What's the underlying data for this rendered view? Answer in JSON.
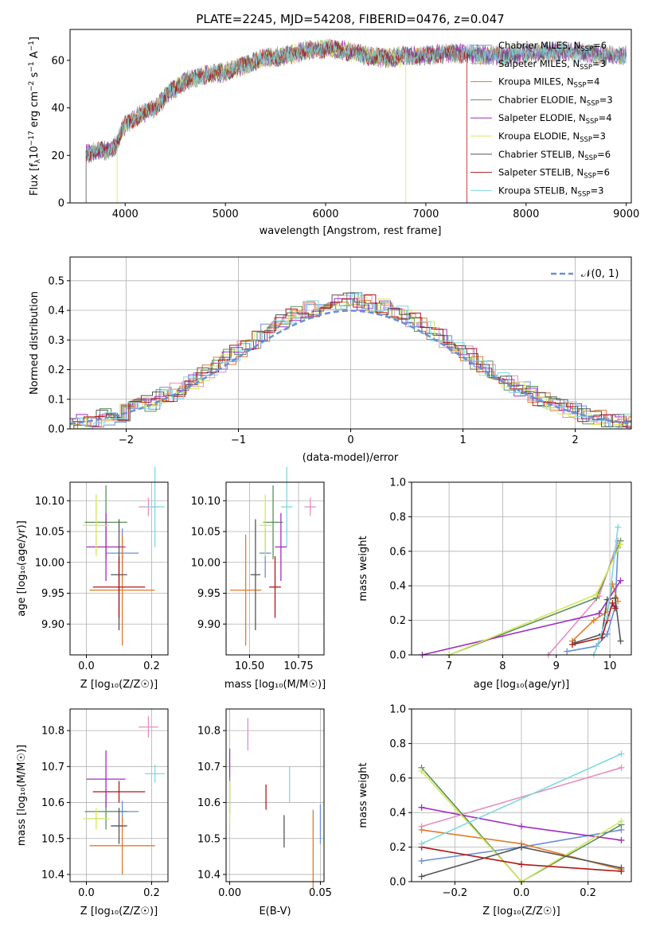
{
  "colors": {
    "c0": "#6a8fd6",
    "c1": "#e58fc0",
    "c2": "#e07b2a",
    "c3": "#5c8f5c",
    "c4": "#a02fbd",
    "c5": "#d4e85a",
    "c6": "#555555",
    "c7": "#b01818",
    "c8": "#7fd9e0"
  },
  "chart_data": [
    {
      "id": "spectrum",
      "type": "line",
      "title": "PLATE=2245, MJD=54208, FIBERID=0476, z=0.047",
      "xlabel": "wavelength [Angstrom, rest frame]",
      "ylabel_main": "Flux [f",
      "ylabel_parts": [
        "λ",
        "10",
        "−17",
        " erg cm",
        "−2",
        " s",
        "−1",
        " A",
        "−1",
        "]"
      ],
      "xlim": [
        3450,
        9050
      ],
      "ylim": [
        0,
        73
      ],
      "xticks": [
        "4000",
        "5000",
        "6000",
        "7000",
        "8000",
        "9000"
      ],
      "yticks": [
        "0",
        "20",
        "40",
        "60"
      ],
      "continuum_x": [
        3600,
        3800,
        3900,
        4000,
        4150,
        4300,
        4450,
        4600,
        4800,
        5000,
        5200,
        5400,
        5600,
        5800,
        6000,
        6200,
        6400,
        6600,
        6800,
        7000,
        7200,
        7400,
        7600,
        7800,
        8000,
        8200,
        8400,
        8600,
        8800
      ],
      "continuum_y": [
        21,
        22,
        24,
        33,
        37,
        40,
        47,
        51,
        54,
        55,
        58,
        61,
        62,
        64,
        65,
        64,
        62,
        61,
        62,
        62,
        63,
        63,
        62,
        62,
        63,
        63,
        64,
        63,
        62
      ],
      "legend": [
        {
          "label": "Chabrier MILES, N",
          "sub": "SSP",
          "tail": "=6"
        },
        {
          "label": "Salpeter MILES, N",
          "sub": "SSP",
          "tail": "=3"
        },
        {
          "label": "Kroupa MILES, N",
          "sub": "SSP",
          "tail": "=4"
        },
        {
          "label": "Chabrier ELODIE, N",
          "sub": "SSP",
          "tail": "=3"
        },
        {
          "label": "Salpeter ELODIE, N",
          "sub": "SSP",
          "tail": "=4"
        },
        {
          "label": "Kroupa ELODIE, N",
          "sub": "SSP",
          "tail": "=3"
        },
        {
          "label": "Chabrier STELIB, N",
          "sub": "SSP",
          "tail": "=6"
        },
        {
          "label": "Salpeter STELIB, N",
          "sub": "SSP",
          "tail": "=6"
        },
        {
          "label": "Kroupa STELIB, N",
          "sub": "SSP",
          "tail": "=3"
        }
      ],
      "series_ranges": [
        [
          3610,
          9000
        ],
        [
          3610,
          9000
        ],
        [
          3610,
          9000
        ],
        [
          3610,
          9000
        ],
        [
          3610,
          9000
        ],
        [
          3920,
          6800
        ],
        [
          3610,
          9000
        ],
        [
          3610,
          7410
        ],
        [
          3610,
          9000
        ]
      ]
    },
    {
      "id": "residuals",
      "type": "step",
      "xlabel": "(data-model)/error",
      "ylabel": "Normed distribution",
      "xlim": [
        -2.5,
        2.5
      ],
      "ylim": [
        0,
        0.58
      ],
      "xticks": [
        "−2",
        "−1",
        "0",
        "1",
        "2"
      ],
      "yticks": [
        "0.0",
        "0.1",
        "0.2",
        "0.3",
        "0.4",
        "0.5"
      ],
      "legend_label": "𝒩(0, 1)",
      "bin_width": 0.1
    },
    {
      "id": "age-vs-Z",
      "type": "errorbar",
      "xlabel": "Z [log₁₀(Z/Z☉)]",
      "ylabel": "age  [log₁₀(age/yr)]",
      "xlim": [
        -0.05,
        0.25
      ],
      "ylim": [
        9.85,
        10.13
      ],
      "xticks": [
        "0.0",
        "0.2"
      ],
      "yticks": [
        "9.90",
        "9.95",
        "10.00",
        "10.05",
        "10.10"
      ],
      "points": [
        {
          "c": "c0",
          "x": 0.11,
          "xe": 0.05,
          "y": 10.015,
          "ye": 0.04
        },
        {
          "c": "c1",
          "x": 0.19,
          "xe": 0.03,
          "y": 10.09,
          "ye": 0.015
        },
        {
          "c": "c2",
          "x": 0.11,
          "xe": 0.1,
          "y": 9.955,
          "ye": 0.09
        },
        {
          "c": "c3",
          "x": 0.06,
          "xe": 0.065,
          "y": 10.065,
          "ye": 0.06
        },
        {
          "c": "c4",
          "x": 0.06,
          "xe": 0.06,
          "y": 10.025,
          "ye": 0.055
        },
        {
          "c": "c5",
          "x": 0.03,
          "xe": 0.04,
          "y": 10.06,
          "ye": 0.05
        },
        {
          "c": "c6",
          "x": 0.1,
          "xe": 0.025,
          "y": 9.98,
          "ye": 0.09
        },
        {
          "c": "c7",
          "x": 0.1,
          "xe": 0.08,
          "y": 9.96,
          "ye": 0.05
        },
        {
          "c": "c8",
          "x": 0.21,
          "xe": 0.03,
          "y": 10.09,
          "ye": 0.065
        }
      ]
    },
    {
      "id": "age-vs-mass",
      "type": "errorbar",
      "xlabel": "mass [log₁₀(M/M☉)]",
      "ylabel": "",
      "xlim": [
        10.38,
        10.88
      ],
      "ylim": [
        9.85,
        10.13
      ],
      "xticks": [
        "10.50",
        "10.75"
      ],
      "yticks": [
        "9.90",
        "9.95",
        "10.00",
        "10.05",
        "10.10"
      ],
      "points": [
        {
          "c": "c0",
          "x": 10.58,
          "xe": 0.03,
          "y": 10.015,
          "ye": 0.04
        },
        {
          "c": "c1",
          "x": 10.81,
          "xe": 0.03,
          "y": 10.09,
          "ye": 0.015
        },
        {
          "c": "c2",
          "x": 10.48,
          "xe": 0.08,
          "y": 9.955,
          "ye": 0.09
        },
        {
          "c": "c3",
          "x": 10.62,
          "xe": 0.05,
          "y": 10.065,
          "ye": 0.06
        },
        {
          "c": "c4",
          "x": 10.66,
          "xe": 0.03,
          "y": 10.025,
          "ye": 0.055
        },
        {
          "c": "c5",
          "x": 10.58,
          "xe": 0.03,
          "y": 10.06,
          "ye": 0.05
        },
        {
          "c": "c6",
          "x": 10.53,
          "xe": 0.025,
          "y": 9.98,
          "ye": 0.09
        },
        {
          "c": "c7",
          "x": 10.63,
          "xe": 0.03,
          "y": 9.96,
          "ye": 0.05
        },
        {
          "c": "c8",
          "x": 10.69,
          "xe": 0.03,
          "y": 10.09,
          "ye": 0.065
        }
      ]
    },
    {
      "id": "weight-vs-age",
      "type": "line",
      "xlabel": "age  [log₁₀(age/yr)]",
      "ylabel": "mass weight",
      "xlim": [
        6.3,
        10.4
      ],
      "ylim": [
        0,
        1
      ],
      "xticks": [
        "7",
        "8",
        "9",
        "10"
      ],
      "yticks": [
        "0.0",
        "0.2",
        "0.4",
        "0.6",
        "0.8",
        "1.0"
      ],
      "series": [
        {
          "c": "c0",
          "x": [
            9.2,
            9.75,
            9.95,
            10.1,
            10.15
          ],
          "y": [
            0.02,
            0.05,
            0.12,
            0.28,
            0.62
          ]
        },
        {
          "c": "c1",
          "x": [
            8.85,
            9.8,
            10.15
          ],
          "y": [
            0.0,
            0.34,
            0.66
          ]
        },
        {
          "c": "c2",
          "x": [
            9.3,
            9.7,
            9.95,
            10.05,
            10.15
          ],
          "y": [
            0.08,
            0.2,
            0.25,
            0.41,
            0.31
          ]
        },
        {
          "c": "c3",
          "x": [
            7.0,
            9.75,
            10.2
          ],
          "y": [
            0.0,
            0.33,
            0.66
          ]
        },
        {
          "c": "c4",
          "x": [
            6.5,
            9.8,
            10.2
          ],
          "y": [
            0.0,
            0.24,
            0.43
          ]
        },
        {
          "c": "c5",
          "x": [
            7.0,
            9.75,
            10.2
          ],
          "y": [
            0.0,
            0.35,
            0.64
          ]
        },
        {
          "c": "c6",
          "x": [
            9.35,
            9.85,
            9.95,
            10.1,
            10.2
          ],
          "y": [
            0.07,
            0.12,
            0.32,
            0.33,
            0.08
          ]
        },
        {
          "c": "c7",
          "x": [
            9.3,
            9.85,
            9.95,
            10.05,
            10.1
          ],
          "y": [
            0.06,
            0.1,
            0.2,
            0.3,
            0.27
          ]
        },
        {
          "c": "c8",
          "x": [
            9.7,
            9.95,
            10.15
          ],
          "y": [
            0.0,
            0.22,
            0.74
          ]
        }
      ]
    },
    {
      "id": "mass-vs-Z",
      "type": "errorbar",
      "xlabel": "Z [log₁₀(Z/Z☉)]",
      "ylabel": "mass [log₁₀(M/M☉)]",
      "xlim": [
        -0.05,
        0.25
      ],
      "ylim": [
        10.38,
        10.86
      ],
      "xticks": [
        "0.0",
        "0.2"
      ],
      "yticks": [
        "10.4",
        "10.5",
        "10.6",
        "10.7",
        "10.8"
      ],
      "points": [
        {
          "c": "c0",
          "x": 0.11,
          "xe": 0.05,
          "y": 10.575,
          "ye": 0.03
        },
        {
          "c": "c1",
          "x": 0.19,
          "xe": 0.03,
          "y": 10.81,
          "ye": 0.03
        },
        {
          "c": "c2",
          "x": 0.11,
          "xe": 0.1,
          "y": 10.48,
          "ye": 0.08
        },
        {
          "c": "c3",
          "x": 0.06,
          "xe": 0.065,
          "y": 10.575,
          "ye": 0.05
        },
        {
          "c": "c4",
          "x": 0.06,
          "xe": 0.06,
          "y": 10.665,
          "ye": 0.08
        },
        {
          "c": "c5",
          "x": 0.03,
          "xe": 0.04,
          "y": 10.555,
          "ye": 0.03
        },
        {
          "c": "c6",
          "x": 0.1,
          "xe": 0.025,
          "y": 10.535,
          "ye": 0.05
        },
        {
          "c": "c7",
          "x": 0.1,
          "xe": 0.08,
          "y": 10.63,
          "ye": 0.03
        },
        {
          "c": "c8",
          "x": 0.21,
          "xe": 0.03,
          "y": 10.68,
          "ye": 0.025
        }
      ]
    },
    {
      "id": "mass-vs-ebv",
      "type": "errorbar",
      "xlabel": "E(B-V)",
      "ylabel": "",
      "xlim": [
        -0.002,
        0.052
      ],
      "ylim": [
        10.38,
        10.86
      ],
      "xticks": [
        "0.00",
        "0.05"
      ],
      "yticks": [
        "10.4",
        "10.5",
        "10.6",
        "10.7",
        "10.8"
      ],
      "points": [
        {
          "c": "c0",
          "x": 0.05,
          "xe": 0.0,
          "y": 10.54,
          "ye": 0.055
        },
        {
          "c": "c1",
          "x": 0.01,
          "xe": 0.0,
          "y": 10.79,
          "ye": 0.045
        },
        {
          "c": "c2",
          "x": 0.046,
          "xe": 0.0,
          "y": 10.47,
          "ye": 0.11
        },
        {
          "c": "c3",
          "x": 0.0,
          "xe": 0.0,
          "y": 10.62,
          "ye": 0.05
        },
        {
          "c": "c4",
          "x": 0.0,
          "xe": 0.0,
          "y": 10.71,
          "ye": 0.04
        },
        {
          "c": "c5",
          "x": 0.0,
          "xe": 0.0,
          "y": 10.6,
          "ye": 0.06
        },
        {
          "c": "c6",
          "x": 0.03,
          "xe": 0.0,
          "y": 10.52,
          "ye": 0.045
        },
        {
          "c": "c7",
          "x": 0.02,
          "xe": 0.0,
          "y": 10.615,
          "ye": 0.035
        },
        {
          "c": "c8",
          "x": 0.033,
          "xe": 0.0,
          "y": 10.65,
          "ye": 0.05
        }
      ]
    },
    {
      "id": "weight-vs-Z",
      "type": "line",
      "xlabel": "Z [log₁₀(Z/Z☉)]",
      "ylabel": "mass weight",
      "xlim": [
        -0.33,
        0.33
      ],
      "ylim": [
        0,
        1
      ],
      "xticks": [
        "−0.2",
        "0.0",
        "0.2"
      ],
      "yticks": [
        "0.0",
        "0.2",
        "0.4",
        "0.6",
        "0.8",
        "1.0"
      ],
      "series": [
        {
          "c": "c0",
          "x": [
            -0.3,
            0.0,
            0.3
          ],
          "y": [
            0.12,
            0.2,
            0.3
          ]
        },
        {
          "c": "c1",
          "x": [
            -0.3,
            0.3
          ],
          "y": [
            0.32,
            0.66
          ]
        },
        {
          "c": "c2",
          "x": [
            -0.3,
            0.0,
            0.3
          ],
          "y": [
            0.3,
            0.22,
            0.07
          ]
        },
        {
          "c": "c3",
          "x": [
            -0.3,
            0.0,
            0.3
          ],
          "y": [
            0.66,
            0.0,
            0.33
          ]
        },
        {
          "c": "c4",
          "x": [
            -0.3,
            0.0,
            0.3
          ],
          "y": [
            0.43,
            0.32,
            0.24
          ]
        },
        {
          "c": "c5",
          "x": [
            -0.3,
            0.0,
            0.3
          ],
          "y": [
            0.64,
            0.0,
            0.35
          ]
        },
        {
          "c": "c6",
          "x": [
            -0.3,
            0.0,
            0.3
          ],
          "y": [
            0.03,
            0.2,
            0.08
          ]
        },
        {
          "c": "c7",
          "x": [
            -0.3,
            0.0,
            0.3
          ],
          "y": [
            0.2,
            0.1,
            0.06
          ]
        },
        {
          "c": "c8",
          "x": [
            -0.3,
            0.3
          ],
          "y": [
            0.22,
            0.74
          ]
        }
      ]
    }
  ]
}
